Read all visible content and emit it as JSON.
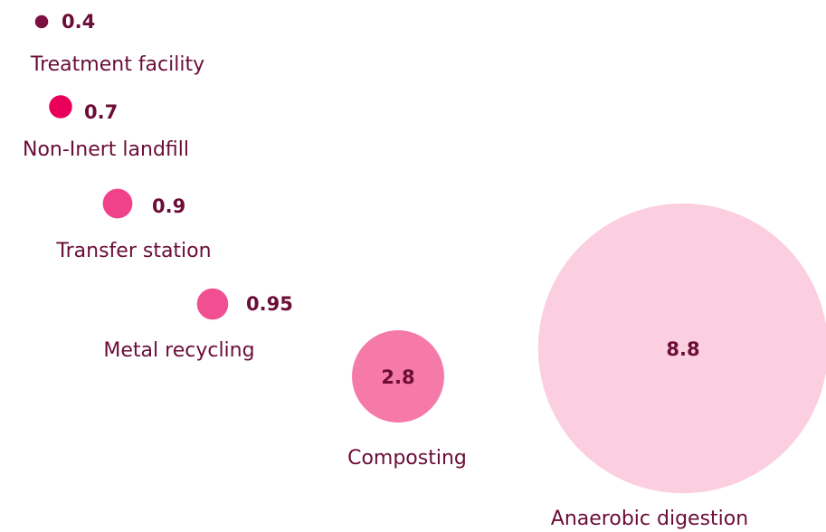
{
  "chart_data": {
    "type": "bubble",
    "categories": [
      "Treatment facility",
      "Non-Inert landfill",
      "Transfer station",
      "Metal recycling",
      "Composting",
      "Anaerobic digestion"
    ],
    "values": [
      0.4,
      0.7,
      0.9,
      0.95,
      2.8,
      8.8
    ],
    "colors": [
      "#7b1040",
      "#e8005a",
      "#f0428a",
      "#f24f92",
      "#f57aa8",
      "#fbcfe0"
    ]
  }
}
